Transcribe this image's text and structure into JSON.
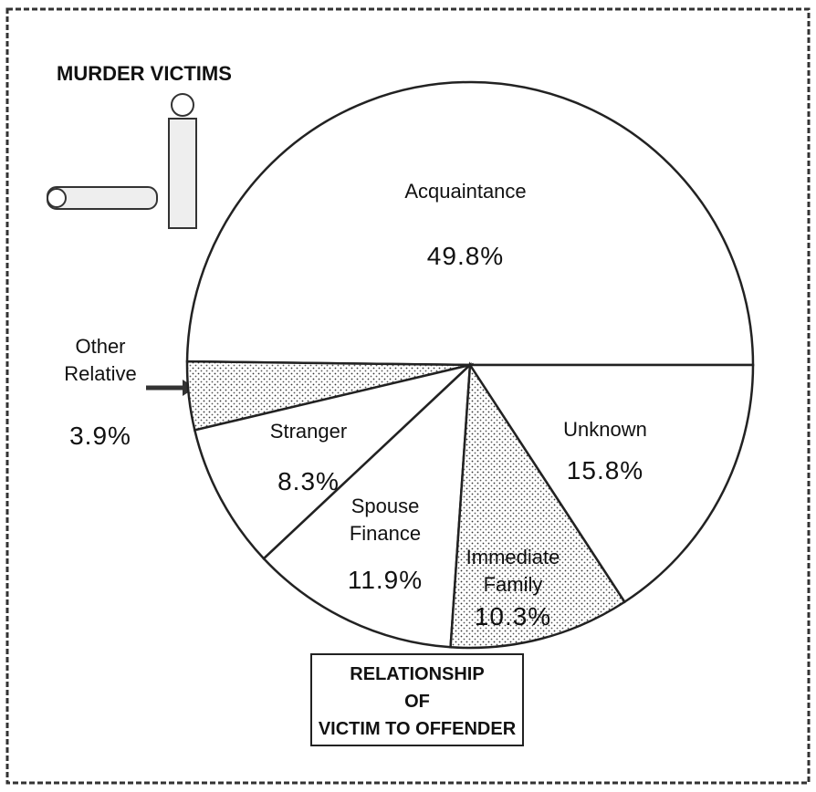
{
  "chart_data": {
    "type": "pie",
    "title": "MURDER VICTIMS",
    "annotation": [
      "RELATIONSHIP",
      "OF",
      "VICTIM TO OFFENDER"
    ],
    "categories": [
      "Acquaintance",
      "Other Relative",
      "Stranger",
      "Spouse Finance",
      "Immediate Family",
      "Unknown"
    ],
    "values": [
      49.8,
      3.9,
      8.3,
      11.9,
      10.3,
      15.8
    ],
    "value_labels": [
      "49.8%",
      "3.9%",
      "8.3%",
      "11.9%",
      "10.3%",
      "15.8%"
    ],
    "fills": [
      "plain",
      "dotted",
      "plain",
      "plain",
      "dotted",
      "plain"
    ],
    "start_angle": 0,
    "direction": "counterclockwise"
  }
}
